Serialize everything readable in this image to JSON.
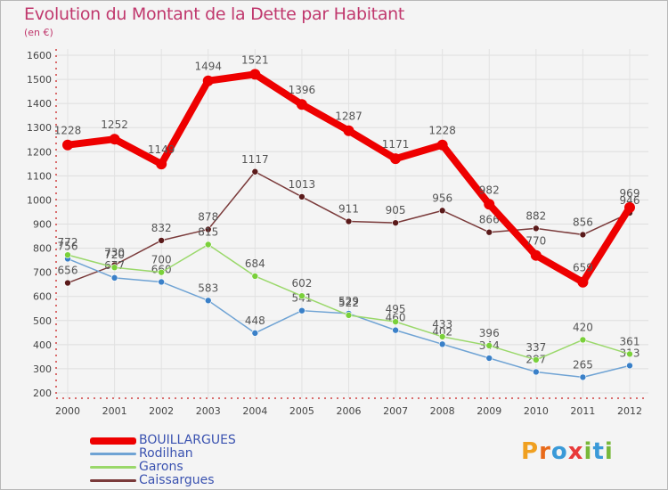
{
  "title": "Evolution du Montant de la Dette par Habitant",
  "subtitle": "(en €)",
  "logo": {
    "text": "Proxiti",
    "letter_colors": [
      "#f0a020",
      "#e86a1a",
      "#3a9ad8",
      "#e83a3a",
      "#78b83a",
      "#3a9ad8",
      "#78b83a"
    ]
  },
  "colors": {
    "title": "#c0386d",
    "BOUILLARGUES": "#ee0000",
    "Rodilhan": "#6fa3d4",
    "Garons": "#9ad86a",
    "Caissargues": "#7a3a3a"
  },
  "chart_data": {
    "type": "line",
    "title": "Evolution du Montant de la Dette par Habitant",
    "subtitle": "(en €)",
    "x": [
      "2000",
      "2001",
      "2002",
      "2003",
      "2004",
      "2005",
      "2006",
      "2007",
      "2008",
      "2009",
      "2010",
      "2011",
      "2012"
    ],
    "ylim": [
      200,
      1600
    ],
    "yticks": [
      "200",
      "300",
      "400",
      "500",
      "600",
      "700",
      "800",
      "900",
      "1000",
      "1100",
      "1200",
      "1300",
      "1400",
      "1500",
      "1600"
    ],
    "grid": true,
    "legend_position": "bottom-left",
    "series": [
      {
        "name": "Caissargues",
        "values": [
          656,
          730,
          832,
          878,
          1117,
          1013,
          911,
          905,
          956,
          866,
          882,
          856,
          946
        ]
      },
      {
        "name": "Rodilhan",
        "values": [
          756,
          677,
          660,
          583,
          448,
          541,
          529,
          460,
          402,
          344,
          287,
          265,
          313
        ]
      },
      {
        "name": "Garons",
        "values": [
          772,
          720,
          700,
          815,
          684,
          602,
          522,
          495,
          433,
          396,
          337,
          420,
          361
        ]
      },
      {
        "name": "BOUILLARGUES",
        "values": [
          1228,
          1252,
          1149,
          1494,
          1521,
          1396,
          1287,
          1171,
          1228,
          982,
          770,
          659,
          969
        ]
      }
    ]
  },
  "legend": [
    {
      "key": "BOUILLARGUES",
      "label": "BOUILLARGUES"
    },
    {
      "key": "Rodilhan",
      "label": "Rodilhan"
    },
    {
      "key": "Garons",
      "label": "Garons"
    },
    {
      "key": "Caissargues",
      "label": "Caissargues"
    }
  ]
}
